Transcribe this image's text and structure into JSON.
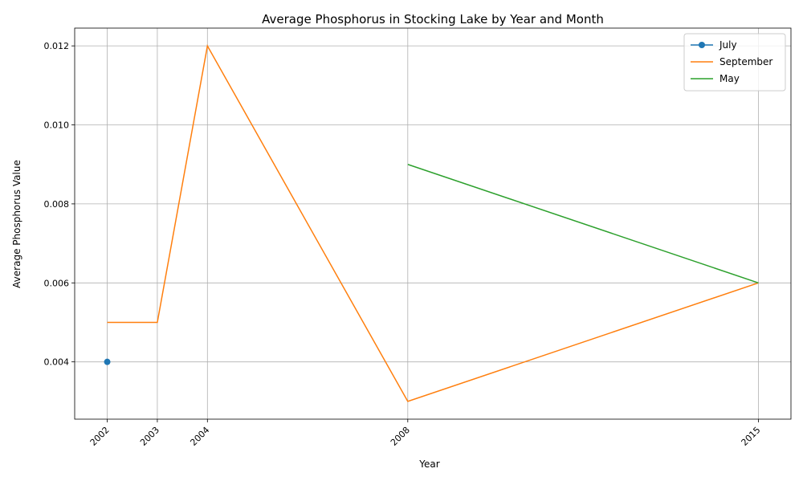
{
  "chart_data": {
    "type": "line",
    "title": "Average Phosphorus in Stocking Lake by Year and Month",
    "xlabel": "Year",
    "ylabel": "Average Phosphorus Value",
    "x_ticks": [
      2002,
      2003,
      2004,
      2008,
      2015
    ],
    "x_tick_labels": [
      "2002",
      "2003",
      "2004",
      "2008",
      "2015"
    ],
    "y_ticks": [
      0.004,
      0.006,
      0.008,
      0.01,
      0.012
    ],
    "y_tick_labels": [
      "0.004",
      "0.006",
      "0.008",
      "0.010",
      "0.012"
    ],
    "xlim": [
      2001.35,
      2015.65
    ],
    "ylim": [
      0.00255,
      0.01245
    ],
    "grid": true,
    "legend_position": "top-right",
    "series": [
      {
        "name": "July",
        "x": [
          2002
        ],
        "y": [
          0.004
        ],
        "color": "#1f77b4",
        "marker": "circle"
      },
      {
        "name": "September",
        "x": [
          2002,
          2003,
          2004,
          2008,
          2015
        ],
        "y": [
          0.005,
          0.005,
          0.012,
          0.003,
          0.006
        ],
        "color": "#ff7f0e",
        "marker": "none"
      },
      {
        "name": "May",
        "x": [
          2008,
          2015
        ],
        "y": [
          0.009,
          0.006
        ],
        "color": "#2ca02c",
        "marker": "none"
      }
    ]
  }
}
